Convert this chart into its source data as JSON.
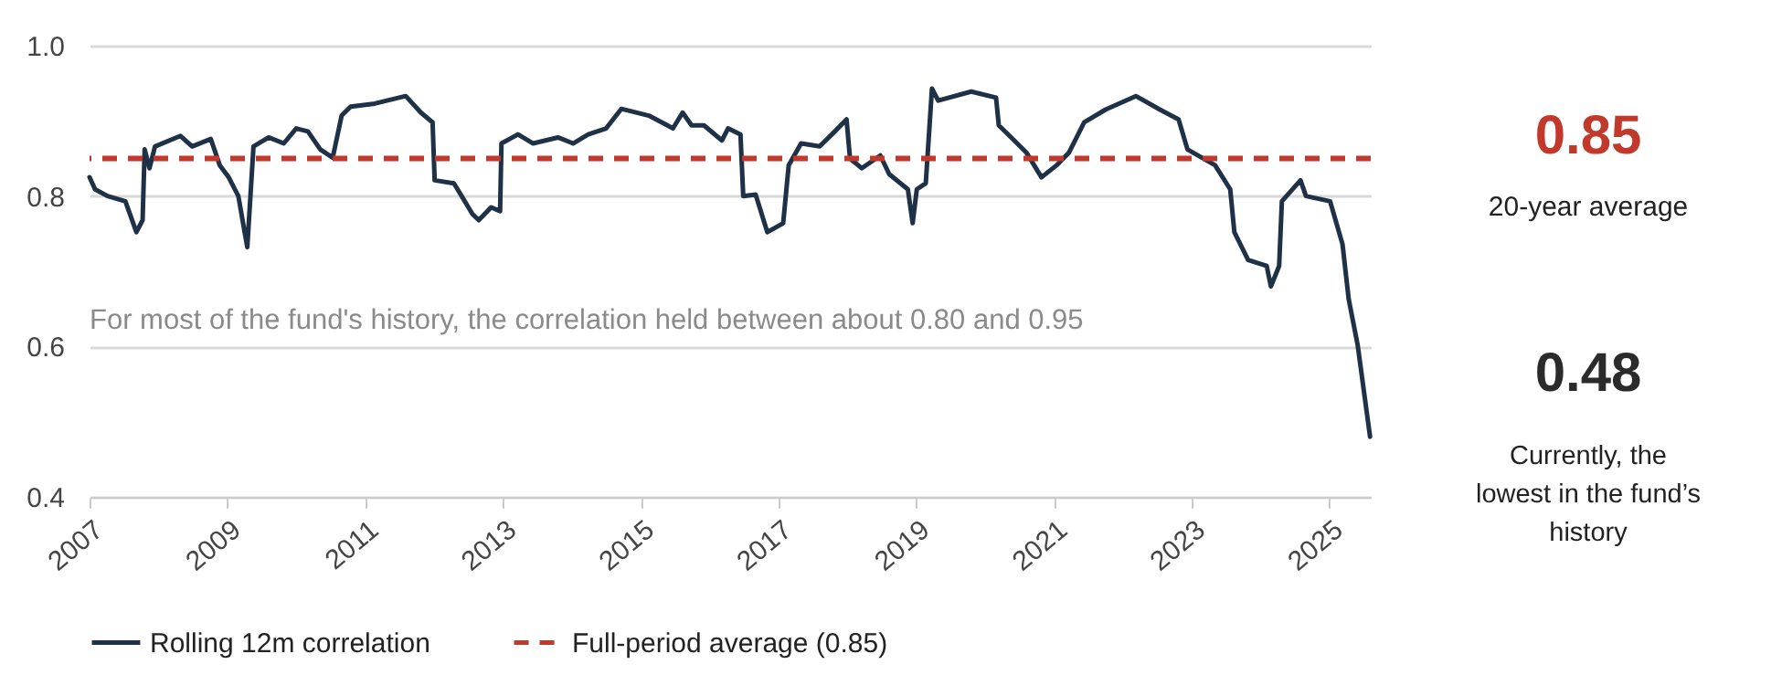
{
  "chart_data": {
    "type": "line",
    "x": [
      2007.0,
      2007.08,
      2007.26,
      2007.52,
      2007.68,
      2007.77,
      2007.8,
      2007.87,
      2007.95,
      2008.32,
      2008.49,
      2008.76,
      2008.89,
      2009.02,
      2009.16,
      2009.29,
      2009.38,
      2009.6,
      2009.82,
      2010.0,
      2010.17,
      2010.35,
      2010.53,
      2010.66,
      2010.79,
      2011.14,
      2011.59,
      2011.81,
      2011.98,
      2012.01,
      2012.29,
      2012.56,
      2012.65,
      2012.83,
      2012.96,
      2012.98,
      2013.22,
      2013.44,
      2013.8,
      2014.02,
      2014.24,
      2014.5,
      2014.72,
      2015.12,
      2015.47,
      2015.61,
      2015.74,
      2015.92,
      2016.18,
      2016.27,
      2016.45,
      2016.49,
      2016.67,
      2016.84,
      2017.07,
      2017.15,
      2017.33,
      2017.6,
      2017.82,
      2017.99,
      2018.04,
      2018.21,
      2018.48,
      2018.61,
      2018.88,
      2018.95,
      2019.01,
      2019.14,
      2019.23,
      2019.32,
      2019.8,
      2020.16,
      2020.2,
      2020.38,
      2020.6,
      2020.82,
      2021.04,
      2021.22,
      2021.44,
      2021.75,
      2022.19,
      2022.54,
      2022.81,
      2022.94,
      2023.34,
      2023.56,
      2023.62,
      2023.82,
      2024.09,
      2024.15,
      2024.27,
      2024.31,
      2024.58,
      2024.66,
      2025.01,
      2025.19,
      2025.28,
      2025.41,
      2025.59
    ],
    "series": [
      {
        "name": "Rolling 12m correlation",
        "color": "#1e3147",
        "values": [
          0.825,
          0.809,
          0.8,
          0.793,
          0.752,
          0.768,
          0.862,
          0.837,
          0.866,
          0.88,
          0.866,
          0.876,
          0.841,
          0.825,
          0.8,
          0.732,
          0.866,
          0.878,
          0.87,
          0.89,
          0.886,
          0.862,
          0.851,
          0.907,
          0.919,
          0.923,
          0.933,
          0.911,
          0.898,
          0.821,
          0.817,
          0.776,
          0.768,
          0.785,
          0.78,
          0.87,
          0.882,
          0.87,
          0.878,
          0.87,
          0.882,
          0.89,
          0.916,
          0.907,
          0.89,
          0.911,
          0.894,
          0.894,
          0.874,
          0.89,
          0.882,
          0.8,
          0.802,
          0.752,
          0.764,
          0.841,
          0.87,
          0.866,
          0.886,
          0.902,
          0.85,
          0.837,
          0.854,
          0.829,
          0.809,
          0.764,
          0.809,
          0.817,
          0.943,
          0.927,
          0.939,
          0.931,
          0.894,
          0.878,
          0.858,
          0.825,
          0.841,
          0.858,
          0.898,
          0.915,
          0.933,
          0.915,
          0.902,
          0.862,
          0.841,
          0.809,
          0.752,
          0.715,
          0.707,
          0.68,
          0.707,
          0.793,
          0.821,
          0.8,
          0.793,
          0.736,
          0.663,
          0.602,
          0.48
        ]
      }
    ],
    "ylim": [
      0.4,
      1.0
    ],
    "yticks": [
      0.4,
      0.6,
      0.8,
      {
        "value": 1.0,
        "label": "1.0"
      }
    ],
    "xlim": [
      2007,
      2025.6
    ],
    "xticks": [
      2007,
      2009,
      2011,
      2013,
      2015,
      2017,
      2019,
      2021,
      2023,
      2025
    ],
    "ref_lines": [
      {
        "axis": "y",
        "value": 0.85,
        "label": "Full-period average (0.85)",
        "color": "#c0392b",
        "line_style": "dashed"
      }
    ],
    "annotations": [
      "For most of the fund's history, the correlation held between about 0.80 and 0.95",
      "0.85",
      "20-year average",
      "0.48",
      "Currently, the lowest in the fund’s history"
    ],
    "grid": "y",
    "legend": "bottom",
    "line_style": "solid",
    "marker": "none"
  }
}
